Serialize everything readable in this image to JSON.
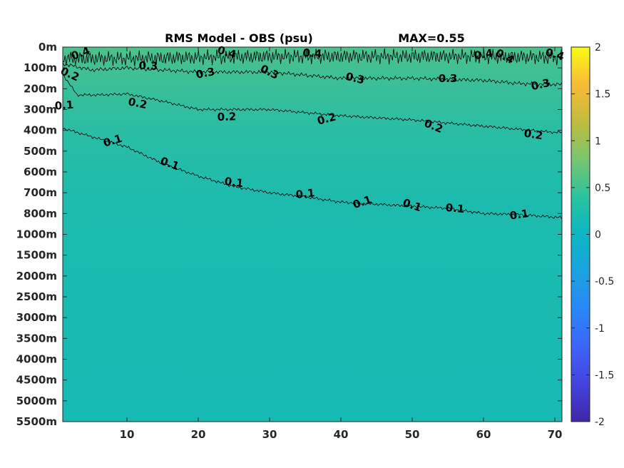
{
  "chart_data": {
    "type": "heatmap",
    "title": "RMS Model - OBS (psu)",
    "max_label": "MAX=0.55",
    "xlabel": "",
    "ylabel": "",
    "x_range": [
      1,
      71
    ],
    "x_ticks": [
      10,
      20,
      30,
      40,
      50,
      60,
      70
    ],
    "x_tick_labels": [
      "10",
      "20",
      "30",
      "40",
      "50",
      "60",
      "70"
    ],
    "y_tick_labels": [
      "0m",
      "100m",
      "200m",
      "300m",
      "400m",
      "500m",
      "600m",
      "700m",
      "800m",
      "1000m",
      "1500m",
      "2000m",
      "2500m",
      "3000m",
      "3500m",
      "4000m",
      "4500m",
      "5000m",
      "5500m"
    ],
    "colorbar": {
      "range": [
        -2,
        2
      ],
      "ticks": [
        2,
        1.5,
        1,
        0.5,
        0,
        -0.5,
        -1,
        -1.5,
        -2
      ],
      "tick_labels": [
        "2",
        "1.5",
        "1",
        "0.5",
        "0",
        "-0.5",
        "-1",
        "-1.5",
        "-2"
      ],
      "colormap": "parula"
    },
    "contour_levels": [
      0.1,
      0.2,
      0.3,
      0.4
    ],
    "contours": [
      {
        "level": 0.4,
        "depth_index": [
          [
            1,
            0.55
          ],
          [
            10,
            0.55
          ],
          [
            20,
            0.5
          ],
          [
            30,
            0.45
          ],
          [
            40,
            0.45
          ],
          [
            50,
            0.45
          ],
          [
            60,
            0.45
          ],
          [
            70,
            0.5
          ],
          [
            71,
            0.5
          ]
        ]
      },
      {
        "level": 0.3,
        "depth_index": [
          [
            1,
            0.8
          ],
          [
            5,
            1.1
          ],
          [
            10,
            1.0
          ],
          [
            20,
            1.2
          ],
          [
            30,
            1.2
          ],
          [
            40,
            1.5
          ],
          [
            50,
            1.5
          ],
          [
            60,
            1.6
          ],
          [
            65,
            1.75
          ],
          [
            71,
            1.8
          ]
        ]
      },
      {
        "level": 0.2,
        "depth_index": [
          [
            1,
            1.3
          ],
          [
            3,
            2.3
          ],
          [
            6,
            2.3
          ],
          [
            10,
            2.25
          ],
          [
            15,
            2.6
          ],
          [
            20,
            3.0
          ],
          [
            30,
            3.0
          ],
          [
            40,
            3.3
          ],
          [
            50,
            3.5
          ],
          [
            60,
            3.8
          ],
          [
            70,
            4.1
          ],
          [
            71,
            4.1
          ]
        ]
      },
      {
        "level": 0.1,
        "depth_index": [
          [
            1,
            3.9
          ],
          [
            5,
            4.3
          ],
          [
            10,
            4.8
          ],
          [
            15,
            5.6
          ],
          [
            20,
            6.2
          ],
          [
            25,
            6.7
          ],
          [
            30,
            7.0
          ],
          [
            35,
            7.2
          ],
          [
            40,
            7.45
          ],
          [
            45,
            7.55
          ],
          [
            50,
            7.65
          ],
          [
            55,
            7.75
          ],
          [
            60,
            8.0
          ],
          [
            65,
            8.05
          ],
          [
            71,
            8.2
          ]
        ]
      }
    ],
    "contour_value_labels": [
      {
        "text": "0.4",
        "x": 3.5,
        "depth_index": 0.3
      },
      {
        "text": "0.4",
        "x": 24,
        "depth_index": 0.25
      },
      {
        "text": "0.4",
        "x": 36,
        "depth_index": 0.3
      },
      {
        "text": "0.4",
        "x": 60,
        "depth_index": 0.35
      },
      {
        "text": "0.4",
        "x": 63,
        "depth_index": 0.45
      },
      {
        "text": "0.4",
        "x": 70,
        "depth_index": 0.35
      },
      {
        "text": "0.3",
        "x": 13,
        "depth_index": 0.9
      },
      {
        "text": "0.3",
        "x": 21,
        "depth_index": 1.25
      },
      {
        "text": "0.3",
        "x": 30,
        "depth_index": 1.2
      },
      {
        "text": "0.3",
        "x": 42,
        "depth_index": 1.5
      },
      {
        "text": "0.3",
        "x": 55,
        "depth_index": 1.5
      },
      {
        "text": "0.3",
        "x": 68,
        "depth_index": 1.8
      },
      {
        "text": "0.2",
        "x": 2,
        "depth_index": 1.3
      },
      {
        "text": "0.2",
        "x": 11.5,
        "depth_index": 2.7
      },
      {
        "text": "0.2",
        "x": 24,
        "depth_index": 3.35
      },
      {
        "text": "0.2",
        "x": 38,
        "depth_index": 3.45
      },
      {
        "text": "0.2",
        "x": 53,
        "depth_index": 3.8
      },
      {
        "text": "0.2",
        "x": 67,
        "depth_index": 4.2
      },
      {
        "text": "0.1",
        "x": 1.2,
        "depth_index": 2.8
      },
      {
        "text": "0.1",
        "x": 8,
        "depth_index": 4.5
      },
      {
        "text": "0.1",
        "x": 16,
        "depth_index": 5.6
      },
      {
        "text": "0.1",
        "x": 25,
        "depth_index": 6.5
      },
      {
        "text": "0.1",
        "x": 35,
        "depth_index": 7.05
      },
      {
        "text": "0.1",
        "x": 43,
        "depth_index": 7.45
      },
      {
        "text": "0.1",
        "x": 50,
        "depth_index": 7.6
      },
      {
        "text": "0.1",
        "x": 56,
        "depth_index": 7.75
      },
      {
        "text": "0.1",
        "x": 65,
        "depth_index": 8.05
      }
    ]
  }
}
